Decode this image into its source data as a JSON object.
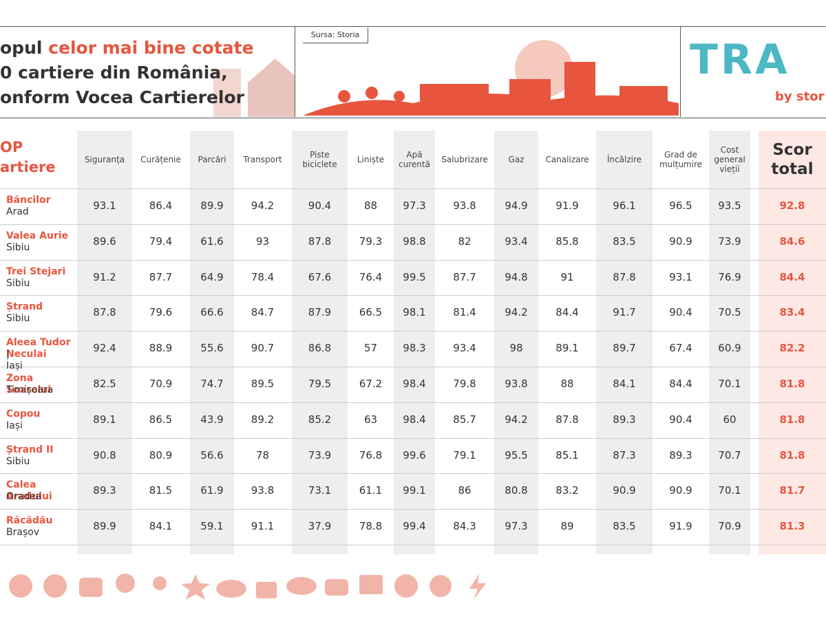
{
  "header": {
    "title": {
      "line1": [
        "opul",
        "celor mai bine cotate"
      ],
      "line2": "0 cartiere din România,",
      "line3": "onform Vocea Cartierelor"
    },
    "source": "Sursa: Storia",
    "logo": {
      "word": "TRA",
      "by": "by stor"
    }
  },
  "table": {
    "corner": [
      "OP",
      "artiere"
    ],
    "columns": [
      "Siguranța",
      "Curățenie",
      "Parcări",
      "Transport",
      "Piste biciclete",
      "Liniște",
      "Apă curentă",
      "Salubrizare",
      "Gaz",
      "Canalizare",
      "Încălzire",
      "Grad de mulțumire",
      "Cost general vieții",
      "Scor total"
    ],
    "rows": [
      {
        "name": "Băncilor",
        "city": "Arad",
        "values": [
          93.1,
          86.4,
          89.9,
          94.2,
          90.4,
          88,
          97.3,
          93.8,
          94.9,
          91.9,
          96.1,
          96.5,
          93.5,
          92.8
        ]
      },
      {
        "name": "Valea Aurie",
        "city": "Sibiu",
        "values": [
          89.6,
          79.4,
          61.6,
          93,
          87.8,
          79.3,
          98.8,
          82,
          93.4,
          85.8,
          83.5,
          90.9,
          73.9,
          84.6
        ]
      },
      {
        "name": "Trei Stejari",
        "city": "Sibiu",
        "values": [
          91.2,
          87.7,
          64.9,
          78.4,
          67.6,
          76.4,
          99.5,
          87.7,
          94.8,
          91,
          87.8,
          93.1,
          76.9,
          84.4
        ]
      },
      {
        "name": "Ștrand",
        "city": "Sibiu",
        "values": [
          87.8,
          79.6,
          66.6,
          84.7,
          87.9,
          66.5,
          98.1,
          81.4,
          94.2,
          84.4,
          91.7,
          90.4,
          70.5,
          83.4
        ]
      },
      {
        "name": "Aleea Tudor Neculai",
        "city": "| Iași",
        "values": [
          92.4,
          88.9,
          55.6,
          90.7,
          86.8,
          57,
          98.3,
          93.4,
          98,
          89.1,
          89.7,
          67.4,
          60.9,
          82.2
        ]
      },
      {
        "name": "Zona Soarelui",
        "city": "Timișoara",
        "values": [
          82.5,
          70.9,
          74.7,
          89.5,
          79.5,
          67.2,
          98.4,
          79.8,
          93.8,
          88,
          84.1,
          84.4,
          70.1,
          81.8
        ]
      },
      {
        "name": "Copou",
        "city": "Iași",
        "values": [
          89.1,
          86.5,
          43.9,
          89.2,
          85.2,
          63,
          98.4,
          85.7,
          94.2,
          87.8,
          89.3,
          90.4,
          60,
          81.8
        ]
      },
      {
        "name": "Ștrand II",
        "city": "Sibiu",
        "values": [
          90.8,
          80.9,
          56.6,
          78,
          73.9,
          76.8,
          99.6,
          79.1,
          95.5,
          85.1,
          87.3,
          89.3,
          70.7,
          81.8
        ]
      },
      {
        "name": "Calea Aradului",
        "city": "Oradea",
        "values": [
          89.3,
          81.5,
          61.9,
          93.8,
          73.1,
          61.1,
          99.1,
          86,
          80.8,
          83.2,
          90.9,
          90.9,
          70.1,
          81.7
        ]
      },
      {
        "name": "Răcădău",
        "city": "Brașov",
        "values": [
          89.9,
          84.1,
          59.1,
          91.1,
          37.9,
          78.8,
          99.4,
          84.3,
          97.3,
          89,
          83.5,
          91.9,
          70.9,
          81.3
        ]
      }
    ]
  }
}
